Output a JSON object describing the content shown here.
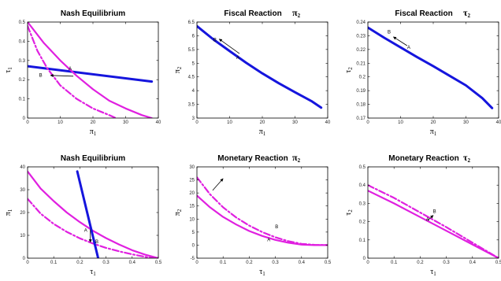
{
  "colors": {
    "blue": "#1515dd",
    "magenta": "#e020e0",
    "frame": "#000000"
  },
  "chart_data": [
    {
      "type": "line",
      "title": "Nash Equilibrium",
      "title_sym": "",
      "xlabel": "π1",
      "ylabel": "τ1",
      "xlim": [
        0,
        40
      ],
      "ylim": [
        0,
        0.5
      ],
      "xticks": [
        0,
        10,
        20,
        30,
        40
      ],
      "yticks": [
        0,
        0.1,
        0.2,
        0.3,
        0.4,
        0.5
      ],
      "xticklabels": [
        "0",
        "10",
        "20",
        "30",
        "40"
      ],
      "yticklabels": [
        "0",
        "0.1",
        "0.2",
        "0.3",
        "0.4",
        "0.5"
      ],
      "series": [
        {
          "color": "#1515dd",
          "dash": "solid",
          "width": 3,
          "x": [
            0,
            38
          ],
          "y": [
            0.27,
            0.19
          ]
        },
        {
          "color": "#e020e0",
          "dash": "solid",
          "width": 2.2,
          "x": [
            0,
            5,
            10,
            15,
            20,
            25,
            30,
            35,
            38
          ],
          "y": [
            0.5,
            0.39,
            0.3,
            0.22,
            0.15,
            0.09,
            0.05,
            0.015,
            0
          ]
        },
        {
          "color": "#e020e0",
          "dash": "dashdot",
          "width": 2.2,
          "x": [
            0,
            3,
            6,
            10,
            15,
            20,
            25,
            27
          ],
          "y": [
            0.48,
            0.35,
            0.26,
            0.17,
            0.1,
            0.05,
            0.015,
            0
          ]
        }
      ],
      "labels": [
        {
          "text": "A",
          "x": 13,
          "y": 0.25
        },
        {
          "text": "B",
          "x": 4,
          "y": 0.215
        }
      ],
      "arrows": [
        {
          "from": [
            14,
            0.218
          ],
          "to": [
            7,
            0.222
          ]
        }
      ]
    },
    {
      "type": "line",
      "title": "Fiscal Reaction",
      "title_sym": "π2",
      "xlabel": "π1",
      "ylabel": "π2",
      "xlim": [
        0,
        40
      ],
      "ylim": [
        3,
        6.5
      ],
      "xticks": [
        0,
        10,
        20,
        30,
        40
      ],
      "yticks": [
        3,
        3.5,
        4,
        4.5,
        5,
        5.5,
        6,
        6.5
      ],
      "xticklabels": [
        "0",
        "10",
        "20",
        "30",
        "40"
      ],
      "yticklabels": [
        "3",
        "3.5",
        "4",
        "4.5",
        "5",
        "5.5",
        "6",
        "6.5"
      ],
      "series": [
        {
          "color": "#1515dd",
          "dash": "solid",
          "width": 3,
          "x": [
            0,
            5,
            10,
            15,
            20,
            25,
            30,
            35,
            38
          ],
          "y": [
            6.35,
            5.87,
            5.44,
            5.02,
            4.63,
            4.27,
            3.94,
            3.62,
            3.38
          ]
        }
      ],
      "labels": [
        {
          "text": "A",
          "x": 12.5,
          "y": 5.15
        },
        {
          "text": "B",
          "x": 5.5,
          "y": 5.8
        }
      ],
      "arrows": [
        {
          "from": [
            13,
            5.35
          ],
          "to": [
            6.8,
            5.88
          ]
        }
      ]
    },
    {
      "type": "line",
      "title": "Fiscal Reaction",
      "title_sym": "τ2",
      "xlabel": "π1",
      "ylabel": "τ2",
      "xlim": [
        0,
        40
      ],
      "ylim": [
        0.17,
        0.24
      ],
      "xticks": [
        0,
        10,
        20,
        30,
        40
      ],
      "yticks": [
        0.17,
        0.18,
        0.19,
        0.2,
        0.21,
        0.22,
        0.23,
        0.24
      ],
      "xticklabels": [
        "0",
        "10",
        "20",
        "30",
        "40"
      ],
      "yticklabels": [
        "0.17",
        "0.18",
        "0.19",
        "0.2",
        "0.21",
        "0.22",
        "0.23",
        "0.24"
      ],
      "series": [
        {
          "color": "#1515dd",
          "dash": "solid",
          "width": 3,
          "x": [
            0,
            5,
            10,
            15,
            20,
            25,
            30,
            35,
            38
          ],
          "y": [
            0.236,
            0.2285,
            0.2215,
            0.2145,
            0.2078,
            0.2008,
            0.1938,
            0.1845,
            0.1773
          ]
        }
      ],
      "labels": [
        {
          "text": "A",
          "x": 12.5,
          "y": 0.2205
        },
        {
          "text": "B",
          "x": 6.5,
          "y": 0.2318
        }
      ],
      "arrows": [
        {
          "from": [
            12,
            0.2228
          ],
          "to": [
            7.8,
            0.2292
          ]
        }
      ]
    },
    {
      "type": "line",
      "title": "Nash Equilibrium",
      "title_sym": "",
      "xlabel": "τ1",
      "ylabel": "π1",
      "xlim": [
        0,
        0.5
      ],
      "ylim": [
        0,
        40
      ],
      "xticks": [
        0,
        0.1,
        0.2,
        0.3,
        0.4,
        0.5
      ],
      "yticks": [
        0,
        10,
        20,
        30,
        40
      ],
      "xticklabels": [
        "0",
        "0.1",
        "0.2",
        "0.3",
        "0.4",
        "0.5"
      ],
      "yticklabels": [
        "0",
        "10",
        "20",
        "30",
        "40"
      ],
      "series": [
        {
          "color": "#e020e0",
          "dash": "solid",
          "width": 2.2,
          "x": [
            0,
            0.05,
            0.1,
            0.15,
            0.2,
            0.25,
            0.3,
            0.35,
            0.4,
            0.45,
            0.5
          ],
          "y": [
            38,
            30.5,
            25,
            20,
            15.8,
            12,
            8.8,
            6,
            3.5,
            1.5,
            0
          ]
        },
        {
          "color": "#e020e0",
          "dash": "dashdot",
          "width": 2.2,
          "x": [
            0,
            0.05,
            0.1,
            0.15,
            0.2,
            0.25,
            0.3,
            0.35,
            0.4,
            0.45,
            0.48
          ],
          "y": [
            26,
            19.5,
            15,
            11.5,
            8.7,
            6.4,
            4.5,
            3,
            1.7,
            0.6,
            0
          ]
        },
        {
          "color": "#1515dd",
          "dash": "solid",
          "width": 3,
          "x": [
            0.19,
            0.27
          ],
          "y": [
            38,
            0
          ]
        }
      ],
      "labels": [
        {
          "text": "A",
          "x": 0.222,
          "y": 11.5
        },
        {
          "text": "B",
          "x": 0.265,
          "y": 6.5
        }
      ],
      "arrows": [
        {
          "from": [
            0.24,
            12.5
          ],
          "to": [
            0.24,
            7
          ]
        }
      ]
    },
    {
      "type": "line",
      "title": "Monetary Reaction",
      "title_sym": "π2",
      "xlabel": "τ1",
      "ylabel": "π2",
      "xlim": [
        0,
        0.5
      ],
      "ylim": [
        -5,
        30
      ],
      "xticks": [
        0,
        0.1,
        0.2,
        0.3,
        0.4,
        0.5
      ],
      "yticks": [
        -5,
        0,
        5,
        10,
        15,
        20,
        25,
        30
      ],
      "xticklabels": [
        "0",
        "0.1",
        "0.2",
        "0.3",
        "0.4",
        "0.5"
      ],
      "yticklabels": [
        "-5",
        "0",
        "5",
        "10",
        "15",
        "20",
        "25",
        "30"
      ],
      "series": [
        {
          "color": "#e020e0",
          "dash": "solid",
          "width": 2.2,
          "x": [
            0,
            0.05,
            0.1,
            0.15,
            0.2,
            0.25,
            0.3,
            0.35,
            0.4,
            0.45,
            0.5
          ],
          "y": [
            19,
            14.5,
            10.8,
            7.9,
            5.4,
            3.5,
            2,
            0.9,
            0.2,
            0,
            0
          ]
        },
        {
          "color": "#e020e0",
          "dash": "dashdot",
          "width": 2.2,
          "x": [
            0,
            0.05,
            0.1,
            0.15,
            0.2,
            0.25,
            0.3,
            0.35,
            0.4,
            0.45,
            0.5
          ],
          "y": [
            26,
            19.5,
            14.5,
            10.6,
            7.5,
            5,
            3,
            1.5,
            0.5,
            0.1,
            0
          ]
        }
      ],
      "labels": [
        {
          "text": "A",
          "x": 0.275,
          "y": 1.5
        },
        {
          "text": "B",
          "x": 0.305,
          "y": 6.5
        }
      ],
      "arrows": [
        {
          "from": [
            0.06,
            21
          ],
          "to": [
            0.1,
            25.5
          ]
        }
      ]
    },
    {
      "type": "line",
      "title": "Monetary Reaction",
      "title_sym": "τ2",
      "xlabel": "τ1",
      "ylabel": "τ2",
      "xlim": [
        0,
        0.5
      ],
      "ylim": [
        0,
        0.5
      ],
      "xticks": [
        0,
        0.1,
        0.2,
        0.3,
        0.4,
        0.5
      ],
      "yticks": [
        0,
        0.1,
        0.2,
        0.3,
        0.4,
        0.5
      ],
      "xticklabels": [
        "0",
        "0.1",
        "0.2",
        "0.3",
        "0.4",
        "0.5"
      ],
      "yticklabels": [
        "0",
        "0.1",
        "0.2",
        "0.3",
        "0.4",
        "0.5"
      ],
      "series": [
        {
          "color": "#e020e0",
          "dash": "solid",
          "width": 2.2,
          "x": [
            0,
            0.1,
            0.2,
            0.3,
            0.4,
            0.5
          ],
          "y": [
            0.37,
            0.3,
            0.225,
            0.15,
            0.075,
            0
          ]
        },
        {
          "color": "#e020e0",
          "dash": "dashdot",
          "width": 2.2,
          "x": [
            0,
            0.1,
            0.2,
            0.3,
            0.4,
            0.5
          ],
          "y": [
            0.4,
            0.33,
            0.25,
            0.17,
            0.085,
            0
          ]
        }
      ],
      "labels": [
        {
          "text": "A",
          "x": 0.228,
          "y": 0.205
        },
        {
          "text": "B",
          "x": 0.255,
          "y": 0.248
        }
      ],
      "arrows": [
        {
          "from": [
            0.228,
            0.205
          ],
          "to": [
            0.25,
            0.235
          ]
        }
      ]
    }
  ]
}
